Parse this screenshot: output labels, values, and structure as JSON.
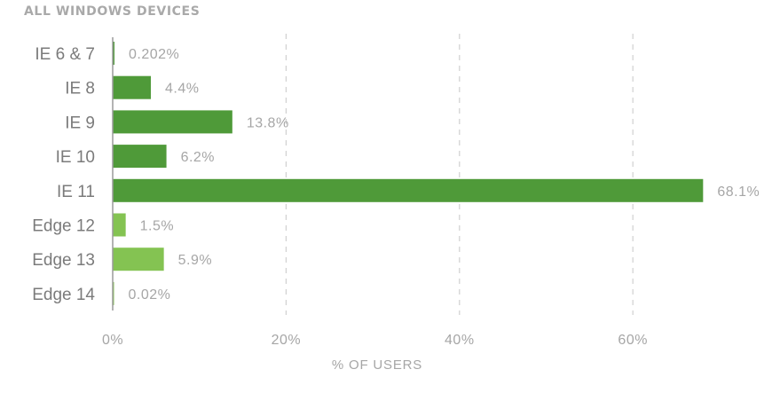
{
  "chart_data": {
    "type": "bar",
    "orientation": "horizontal",
    "title": "ALL WINDOWS DEVICES",
    "xlabel": "% OF USERS",
    "ylabel": "",
    "xlim": [
      0,
      70
    ],
    "xticks": [
      0,
      20,
      40,
      60
    ],
    "xtick_labels": [
      "0%",
      "20%",
      "40%",
      "60%"
    ],
    "grid": "vertical dashed",
    "categories": [
      "IE 6 & 7",
      "IE 8",
      "IE 9",
      "IE 10",
      "IE 11",
      "Edge 12",
      "Edge 13",
      "Edge 14"
    ],
    "values": [
      0.202,
      4.4,
      13.8,
      6.2,
      68.1,
      1.5,
      5.9,
      0.02
    ],
    "value_labels": [
      "0.202%",
      "4.4%",
      "13.8%",
      "6.2%",
      "68.1%",
      "1.5%",
      "5.9%",
      "0.02%"
    ],
    "colors": [
      "#4f9a39",
      "#4f9a39",
      "#4f9a39",
      "#4f9a39",
      "#4f9a39",
      "#84c352",
      "#84c352",
      "#84c352"
    ]
  }
}
